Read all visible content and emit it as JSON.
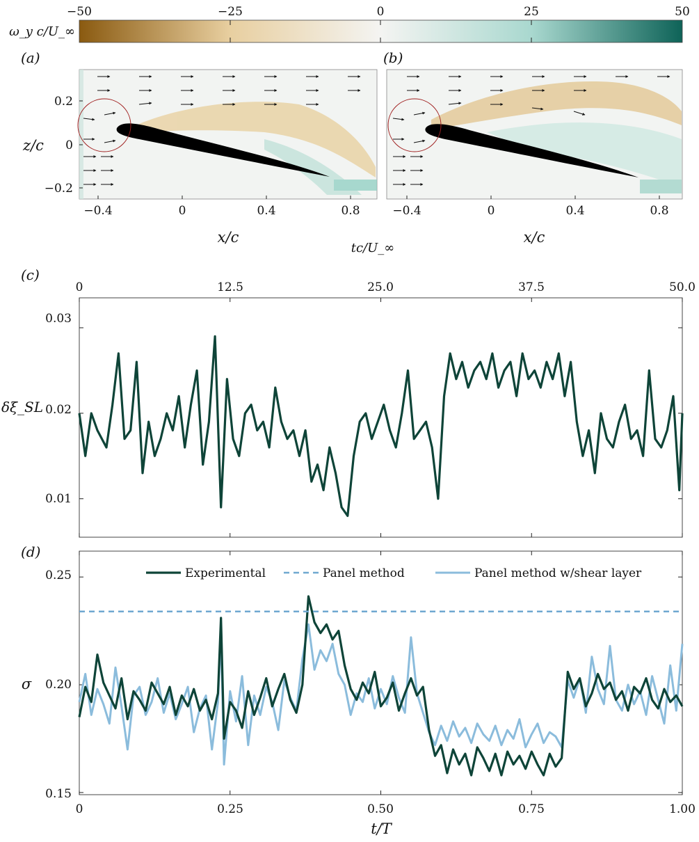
{
  "colorbar": {
    "label": "ω_y c/U_∞",
    "ticks": [
      "−50",
      "−25",
      "0",
      "25",
      "50"
    ],
    "colors": [
      "#8a5a10",
      "#e8cfa0",
      "#f4f4f2",
      "#a9d8cf",
      "#0e6358"
    ]
  },
  "panel_a": {
    "letter": "(a)",
    "xticks": [
      "−0.4",
      "0",
      "0.4",
      "0.8"
    ],
    "yticks": [
      "0.2",
      "0",
      "−0.2"
    ],
    "xlabel": "x/c",
    "ylabel": "z/c"
  },
  "panel_b": {
    "letter": "(b)",
    "xticks": [
      "−0.4",
      "0",
      "0.4",
      "0.8"
    ],
    "xlabel": "x/c"
  },
  "chart_data": [
    {
      "panel": "c",
      "letter": "(c)",
      "type": "line",
      "top_axis_label": "tc/U_∞",
      "top_ticks": [
        "0",
        "12.5",
        "25.0",
        "37.5",
        "50.0"
      ],
      "ylabel": "δξ_SL",
      "yticks": [
        "0.03",
        "0.02",
        "0.01"
      ],
      "xlim": [
        0,
        1
      ],
      "ylim": [
        0.0055,
        0.0335
      ],
      "color": "#0e4438",
      "series": [
        {
          "name": "",
          "x": [
            0.0,
            0.01,
            0.02,
            0.03,
            0.045,
            0.055,
            0.065,
            0.075,
            0.085,
            0.095,
            0.105,
            0.115,
            0.125,
            0.135,
            0.145,
            0.155,
            0.165,
            0.175,
            0.185,
            0.195,
            0.205,
            0.215,
            0.225,
            0.235,
            0.245,
            0.255,
            0.265,
            0.275,
            0.285,
            0.295,
            0.305,
            0.315,
            0.325,
            0.335,
            0.345,
            0.355,
            0.365,
            0.375,
            0.385,
            0.395,
            0.405,
            0.415,
            0.425,
            0.435,
            0.445,
            0.455,
            0.465,
            0.475,
            0.485,
            0.495,
            0.505,
            0.515,
            0.525,
            0.535,
            0.545,
            0.555,
            0.565,
            0.575,
            0.585,
            0.595,
            0.605,
            0.615,
            0.625,
            0.635,
            0.645,
            0.655,
            0.665,
            0.675,
            0.685,
            0.695,
            0.705,
            0.715,
            0.725,
            0.735,
            0.745,
            0.755,
            0.765,
            0.775,
            0.785,
            0.795,
            0.805,
            0.815,
            0.825,
            0.835,
            0.845,
            0.855,
            0.865,
            0.875,
            0.885,
            0.895,
            0.905,
            0.915,
            0.925,
            0.935,
            0.945,
            0.955,
            0.965,
            0.975,
            0.985,
            0.995,
            1.0
          ],
          "y": [
            0.02,
            0.015,
            0.02,
            0.018,
            0.016,
            0.021,
            0.027,
            0.017,
            0.018,
            0.026,
            0.013,
            0.019,
            0.015,
            0.017,
            0.02,
            0.018,
            0.022,
            0.016,
            0.021,
            0.025,
            0.014,
            0.019,
            0.029,
            0.009,
            0.024,
            0.017,
            0.015,
            0.02,
            0.021,
            0.018,
            0.019,
            0.016,
            0.023,
            0.019,
            0.017,
            0.018,
            0.015,
            0.018,
            0.012,
            0.014,
            0.011,
            0.016,
            0.013,
            0.009,
            0.008,
            0.015,
            0.019,
            0.02,
            0.017,
            0.019,
            0.021,
            0.018,
            0.016,
            0.02,
            0.025,
            0.017,
            0.018,
            0.019,
            0.016,
            0.01,
            0.022,
            0.027,
            0.024,
            0.026,
            0.023,
            0.025,
            0.026,
            0.024,
            0.027,
            0.023,
            0.025,
            0.026,
            0.022,
            0.027,
            0.024,
            0.025,
            0.023,
            0.026,
            0.024,
            0.027,
            0.022,
            0.026,
            0.019,
            0.015,
            0.018,
            0.013,
            0.02,
            0.017,
            0.016,
            0.019,
            0.021,
            0.017,
            0.018,
            0.015,
            0.025,
            0.017,
            0.016,
            0.018,
            0.022,
            0.011,
            0.02
          ]
        }
      ]
    },
    {
      "panel": "d",
      "letter": "(d)",
      "type": "line",
      "xlabel": "t/T",
      "ylabel": "σ",
      "xticks": [
        "0",
        "0.25",
        "0.50",
        "0.75",
        "1.00"
      ],
      "yticks": [
        "0.25",
        "0.20",
        "0.15"
      ],
      "xlim": [
        0,
        1
      ],
      "ylim": [
        0.149,
        0.262
      ],
      "series": [
        {
          "name": "Experimental",
          "color": "#0e4438",
          "style": "solid",
          "x": [
            0.0,
            0.01,
            0.02,
            0.03,
            0.04,
            0.05,
            0.06,
            0.07,
            0.08,
            0.09,
            0.1,
            0.11,
            0.12,
            0.13,
            0.14,
            0.15,
            0.16,
            0.17,
            0.18,
            0.19,
            0.2,
            0.21,
            0.22,
            0.23,
            0.235,
            0.24,
            0.25,
            0.26,
            0.27,
            0.28,
            0.29,
            0.3,
            0.31,
            0.32,
            0.33,
            0.34,
            0.35,
            0.36,
            0.37,
            0.38,
            0.39,
            0.4,
            0.41,
            0.42,
            0.43,
            0.44,
            0.45,
            0.46,
            0.47,
            0.48,
            0.49,
            0.5,
            0.51,
            0.52,
            0.53,
            0.54,
            0.55,
            0.56,
            0.57,
            0.58,
            0.59,
            0.6,
            0.61,
            0.62,
            0.63,
            0.64,
            0.65,
            0.66,
            0.67,
            0.68,
            0.69,
            0.7,
            0.71,
            0.72,
            0.73,
            0.74,
            0.75,
            0.76,
            0.77,
            0.78,
            0.79,
            0.8,
            0.81,
            0.82,
            0.83,
            0.84,
            0.85,
            0.86,
            0.87,
            0.88,
            0.89,
            0.9,
            0.91,
            0.92,
            0.93,
            0.94,
            0.95,
            0.96,
            0.97,
            0.98,
            0.99,
            1.0
          ],
          "y": [
            0.185,
            0.199,
            0.192,
            0.214,
            0.201,
            0.195,
            0.189,
            0.203,
            0.184,
            0.197,
            0.193,
            0.188,
            0.201,
            0.196,
            0.191,
            0.199,
            0.186,
            0.195,
            0.19,
            0.198,
            0.188,
            0.193,
            0.184,
            0.196,
            0.231,
            0.175,
            0.192,
            0.188,
            0.18,
            0.197,
            0.186,
            0.194,
            0.203,
            0.19,
            0.198,
            0.205,
            0.193,
            0.187,
            0.2,
            0.241,
            0.229,
            0.224,
            0.228,
            0.221,
            0.225,
            0.209,
            0.198,
            0.193,
            0.201,
            0.196,
            0.206,
            0.19,
            0.194,
            0.201,
            0.188,
            0.196,
            0.203,
            0.195,
            0.199,
            0.179,
            0.167,
            0.172,
            0.159,
            0.17,
            0.163,
            0.168,
            0.158,
            0.171,
            0.166,
            0.16,
            0.168,
            0.158,
            0.169,
            0.163,
            0.167,
            0.161,
            0.169,
            0.163,
            0.158,
            0.168,
            0.162,
            0.166,
            0.206,
            0.198,
            0.203,
            0.19,
            0.196,
            0.205,
            0.198,
            0.201,
            0.193,
            0.197,
            0.188,
            0.199,
            0.196,
            0.203,
            0.193,
            0.189,
            0.198,
            0.192,
            0.195,
            0.19
          ]
        },
        {
          "name": "Panel method",
          "color": "#6fa8d0",
          "style": "dashed",
          "x": [
            0,
            1
          ],
          "y": [
            0.234,
            0.234
          ]
        },
        {
          "name": "Panel method w/shear layer",
          "color": "#8bbcdc",
          "style": "solid",
          "x": [
            0.0,
            0.01,
            0.02,
            0.03,
            0.04,
            0.05,
            0.06,
            0.07,
            0.08,
            0.09,
            0.1,
            0.11,
            0.12,
            0.13,
            0.14,
            0.15,
            0.16,
            0.17,
            0.18,
            0.19,
            0.2,
            0.21,
            0.22,
            0.23,
            0.235,
            0.24,
            0.25,
            0.26,
            0.27,
            0.28,
            0.29,
            0.3,
            0.31,
            0.32,
            0.33,
            0.34,
            0.35,
            0.36,
            0.37,
            0.38,
            0.39,
            0.4,
            0.41,
            0.42,
            0.43,
            0.44,
            0.45,
            0.46,
            0.47,
            0.48,
            0.49,
            0.5,
            0.51,
            0.52,
            0.53,
            0.54,
            0.55,
            0.56,
            0.57,
            0.58,
            0.59,
            0.6,
            0.61,
            0.62,
            0.63,
            0.64,
            0.65,
            0.66,
            0.67,
            0.68,
            0.69,
            0.7,
            0.71,
            0.72,
            0.73,
            0.74,
            0.75,
            0.76,
            0.77,
            0.78,
            0.79,
            0.8,
            0.81,
            0.82,
            0.83,
            0.84,
            0.85,
            0.86,
            0.87,
            0.88,
            0.89,
            0.9,
            0.91,
            0.92,
            0.93,
            0.94,
            0.95,
            0.96,
            0.97,
            0.98,
            0.99,
            1.0
          ],
          "y": [
            0.192,
            0.205,
            0.186,
            0.198,
            0.191,
            0.182,
            0.208,
            0.19,
            0.17,
            0.195,
            0.199,
            0.186,
            0.192,
            0.203,
            0.187,
            0.196,
            0.184,
            0.191,
            0.199,
            0.178,
            0.189,
            0.195,
            0.17,
            0.192,
            0.224,
            0.163,
            0.197,
            0.183,
            0.204,
            0.172,
            0.195,
            0.186,
            0.199,
            0.192,
            0.179,
            0.202,
            0.194,
            0.188,
            0.212,
            0.228,
            0.207,
            0.216,
            0.211,
            0.219,
            0.205,
            0.2,
            0.186,
            0.196,
            0.192,
            0.203,
            0.189,
            0.198,
            0.191,
            0.204,
            0.194,
            0.187,
            0.222,
            0.196,
            0.187,
            0.178,
            0.172,
            0.181,
            0.174,
            0.183,
            0.176,
            0.18,
            0.173,
            0.182,
            0.177,
            0.174,
            0.181,
            0.172,
            0.179,
            0.175,
            0.184,
            0.171,
            0.177,
            0.182,
            0.173,
            0.178,
            0.176,
            0.171,
            0.202,
            0.194,
            0.203,
            0.187,
            0.213,
            0.198,
            0.191,
            0.218,
            0.193,
            0.188,
            0.2,
            0.191,
            0.197,
            0.186,
            0.204,
            0.193,
            0.182,
            0.209,
            0.188,
            0.219
          ]
        }
      ]
    }
  ]
}
